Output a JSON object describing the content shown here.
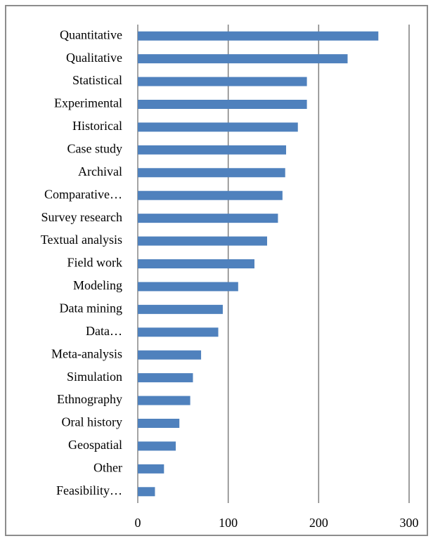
{
  "chart_data": {
    "type": "bar",
    "orientation": "horizontal",
    "categories": [
      "Quantitative",
      "Qualitative",
      "Statistical",
      "Experimental",
      "Historical",
      "Case study",
      "Archival",
      "Comparative…",
      "Survey research",
      "Textual analysis",
      "Field work",
      "Modeling",
      "Data mining",
      "Data…",
      "Meta-analysis",
      "Simulation",
      "Ethnography",
      "Oral history",
      "Geospatial",
      "Other",
      "Feasibility…"
    ],
    "values": [
      266,
      232,
      187,
      187,
      177,
      164,
      163,
      160,
      155,
      143,
      129,
      111,
      94,
      89,
      70,
      61,
      58,
      46,
      42,
      29,
      19
    ],
    "color": "#4f81bd",
    "xlim": [
      0,
      300
    ],
    "xticks": [
      0,
      100,
      200,
      300
    ],
    "grid": true
  }
}
